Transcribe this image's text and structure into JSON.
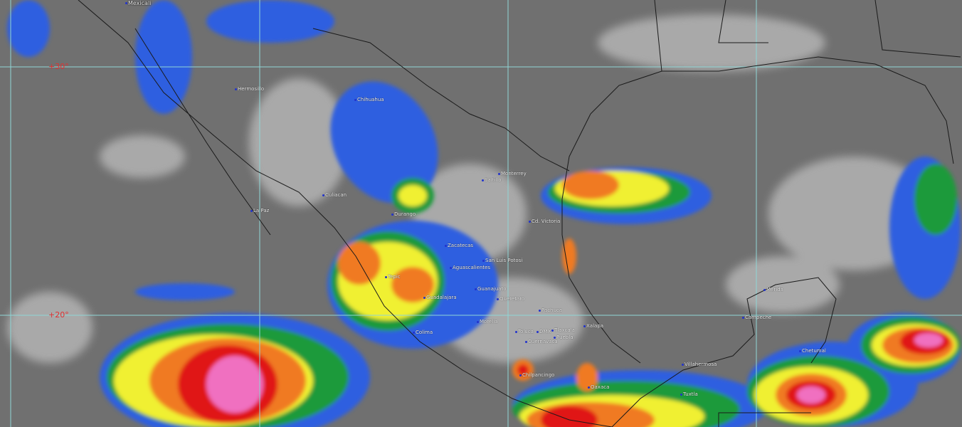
{
  "map": {
    "latitude_labels": [
      "+30°",
      "+20°"
    ],
    "cities": [
      "Mexicali",
      "Hermosillo",
      "Chihuahua",
      "Culiacan",
      "La Paz",
      "Durango",
      "Monterrey",
      "Saltillo",
      "Cd. Victoria",
      "Zacatecas",
      "San Luis Potosi",
      "Aguascalientes",
      "Tepic",
      "Guanajuato",
      "Guadalajara",
      "Queretaro",
      "Pachuca",
      "Morelia",
      "Xalapa",
      "Colima",
      "Toluca",
      "DMX",
      "Tlaxcala",
      "Puebla",
      "Cuernavaca",
      "Chilpancingo",
      "Oaxaca",
      "Villahermosa",
      "Tuxtla",
      "Merida",
      "Campeche",
      "Chetumal"
    ],
    "colors": {
      "grid": "#8fd6d6",
      "lat_label": "#e23030",
      "border": "#1a1a1a",
      "cloud_blue": "#2f5fe0",
      "cloud_green": "#1f9a3a",
      "cloud_yellow": "#f0f030",
      "cloud_orange": "#f07a20",
      "cloud_red": "#e01818",
      "cloud_pink": "#f070c0"
    }
  }
}
